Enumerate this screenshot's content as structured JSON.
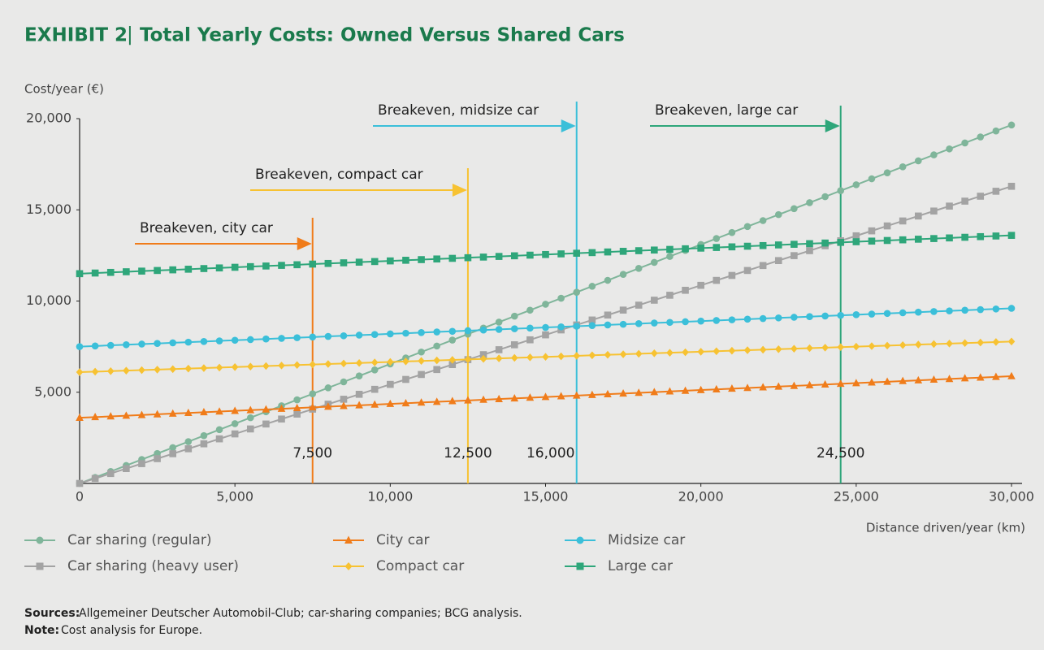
{
  "chart_data": {
    "type": "line",
    "title_prefix": "EXHIBIT 2",
    "title_separator": "|",
    "title": "Total Yearly Costs: Owned Versus Shared Cars",
    "y_label": "Cost/year (€)",
    "x_label": "Distance driven/year (km)",
    "xlim": [
      0,
      30000
    ],
    "ylim": [
      0,
      20000
    ],
    "xticks": [
      0,
      {
        "value": 5000,
        "label": "5,000"
      },
      {
        "value": 10000,
        "label": "10,000"
      },
      {
        "value": 15000,
        "label": "15,000"
      },
      {
        "value": 20000,
        "label": "20,000"
      },
      {
        "value": 25000,
        "label": "25,000"
      },
      {
        "value": 30000,
        "label": "30,000"
      }
    ],
    "yticks": [
      {
        "value": 5000,
        "label": "5,000"
      },
      {
        "value": 10000,
        "label": "10,000"
      },
      {
        "value": 15000,
        "label": "15,000"
      },
      {
        "value": 20000,
        "label": "20,000"
      }
    ],
    "x": [
      0,
      500,
      1000,
      1500,
      2000,
      2500,
      3000,
      3500,
      4000,
      4500,
      5000,
      5500,
      6000,
      6500,
      7000,
      7500,
      8000,
      8500,
      9000,
      9500,
      10000,
      10500,
      11000,
      11500,
      12000,
      12500,
      13000,
      13500,
      14000,
      14500,
      15000,
      15500,
      16000,
      16500,
      17000,
      17500,
      18000,
      18500,
      19000,
      19500,
      20000,
      20500,
      21000,
      21500,
      22000,
      22500,
      23000,
      23500,
      24000,
      24500,
      25000,
      25500,
      26000,
      26500,
      27000,
      27500,
      28000,
      28500,
      29000,
      29500,
      30000
    ],
    "series": [
      {
        "name": "Car sharing (regular)",
        "color": "#7fb59a",
        "marker": "circle",
        "values": [
          0,
          328,
          655,
          983,
          1310,
          1638,
          1965,
          2293,
          2620,
          2948,
          3275,
          3603,
          3930,
          4258,
          4585,
          4913,
          5240,
          5568,
          5895,
          6223,
          6550,
          6878,
          7205,
          7533,
          7860,
          8188,
          8515,
          8843,
          9170,
          9498,
          9825,
          10153,
          10480,
          10808,
          11135,
          11463,
          11790,
          12118,
          12445,
          12773,
          13100,
          13428,
          13755,
          14083,
          14410,
          14738,
          15065,
          15393,
          15720,
          16048,
          16375,
          16703,
          17030,
          17358,
          17685,
          18013,
          18340,
          18668,
          18995,
          19323,
          19650
        ]
      },
      {
        "name": "Car sharing (heavy user)",
        "color": "#a3a3a3",
        "marker": "square",
        "values": [
          0,
          272,
          543,
          815,
          1086,
          1358,
          1629,
          1901,
          2172,
          2444,
          2715,
          2987,
          3258,
          3530,
          3801,
          4073,
          4344,
          4616,
          4887,
          5159,
          5430,
          5702,
          5973,
          6245,
          6516,
          6788,
          7059,
          7331,
          7602,
          7874,
          8145,
          8417,
          8688,
          8960,
          9231,
          9503,
          9774,
          10046,
          10317,
          10589,
          10860,
          11132,
          11403,
          11675,
          11946,
          12218,
          12489,
          12761,
          13032,
          13304,
          13575,
          13847,
          14118,
          14390,
          14661,
          14933,
          15204,
          15476,
          15747,
          16019,
          16290
        ]
      },
      {
        "name": "City car",
        "color": "#f07c1a",
        "marker": "triangle",
        "values": [
          3600,
          3638,
          3676,
          3714,
          3752,
          3790,
          3828,
          3866,
          3904,
          3942,
          3980,
          4018,
          4056,
          4094,
          4132,
          4170,
          4208,
          4246,
          4284,
          4322,
          4360,
          4398,
          4436,
          4474,
          4512,
          4550,
          4588,
          4626,
          4664,
          4702,
          4740,
          4778,
          4816,
          4854,
          4892,
          4930,
          4968,
          5006,
          5044,
          5082,
          5120,
          5158,
          5196,
          5234,
          5272,
          5310,
          5348,
          5386,
          5424,
          5462,
          5500,
          5538,
          5576,
          5614,
          5652,
          5690,
          5728,
          5766,
          5804,
          5842,
          5880
        ]
      },
      {
        "name": "Compact car",
        "color": "#f7c232",
        "marker": "diamond",
        "values": [
          6100,
          6128,
          6156,
          6184,
          6212,
          6240,
          6268,
          6296,
          6324,
          6352,
          6380,
          6408,
          6436,
          6464,
          6492,
          6520,
          6548,
          6576,
          6604,
          6632,
          6660,
          6688,
          6716,
          6744,
          6772,
          6800,
          6828,
          6856,
          6884,
          6912,
          6940,
          6968,
          6996,
          7024,
          7052,
          7080,
          7108,
          7136,
          7164,
          7192,
          7220,
          7248,
          7276,
          7304,
          7332,
          7360,
          7388,
          7416,
          7444,
          7472,
          7500,
          7528,
          7556,
          7584,
          7612,
          7640,
          7668,
          7696,
          7724,
          7752,
          7780
        ]
      },
      {
        "name": "Midsize car",
        "color": "#3bbfd9",
        "marker": "circle",
        "values": [
          7500,
          7535,
          7570,
          7605,
          7640,
          7675,
          7710,
          7745,
          7780,
          7815,
          7850,
          7885,
          7920,
          7955,
          7990,
          8025,
          8060,
          8095,
          8130,
          8165,
          8200,
          8235,
          8270,
          8305,
          8340,
          8375,
          8410,
          8445,
          8480,
          8515,
          8550,
          8585,
          8620,
          8655,
          8690,
          8725,
          8760,
          8795,
          8830,
          8865,
          8900,
          8935,
          8970,
          9005,
          9040,
          9075,
          9110,
          9145,
          9180,
          9215,
          9250,
          9285,
          9320,
          9355,
          9390,
          9425,
          9460,
          9495,
          9530,
          9565,
          9600
        ]
      },
      {
        "name": "Large car",
        "color": "#2ea67a",
        "marker": "square",
        "values": [
          11500,
          11535,
          11570,
          11605,
          11640,
          11675,
          11710,
          11745,
          11780,
          11815,
          11850,
          11885,
          11920,
          11955,
          11990,
          12025,
          12060,
          12095,
          12130,
          12165,
          12200,
          12235,
          12270,
          12305,
          12340,
          12375,
          12410,
          12445,
          12480,
          12515,
          12550,
          12585,
          12620,
          12655,
          12690,
          12725,
          12760,
          12795,
          12830,
          12865,
          12900,
          12935,
          12970,
          13005,
          13040,
          13075,
          13110,
          13145,
          13180,
          13215,
          13250,
          13285,
          13320,
          13355,
          13390,
          13425,
          13460,
          13495,
          13530,
          13565,
          13600
        ]
      }
    ],
    "breakevens": [
      {
        "value": 7500,
        "label": "7,500",
        "text": "Breakeven, city car",
        "color": "#f07c1a"
      },
      {
        "value": 12500,
        "label": "12,500",
        "text": "Breakeven, compact car",
        "color": "#f7c232"
      },
      {
        "value": 16000,
        "label": "16,000",
        "text": "Breakeven, midsize car",
        "color": "#3bbfd9"
      },
      {
        "value": 24500,
        "label": "24,500",
        "text": "Breakeven, large car",
        "color": "#2ea67a"
      }
    ],
    "sources_label": "Sources:",
    "sources": "Allgemeiner Deutscher Automobil-Club; car-sharing companies; BCG analysis.",
    "note_label": "Note:",
    "note": "Cost analysis for Europe."
  }
}
